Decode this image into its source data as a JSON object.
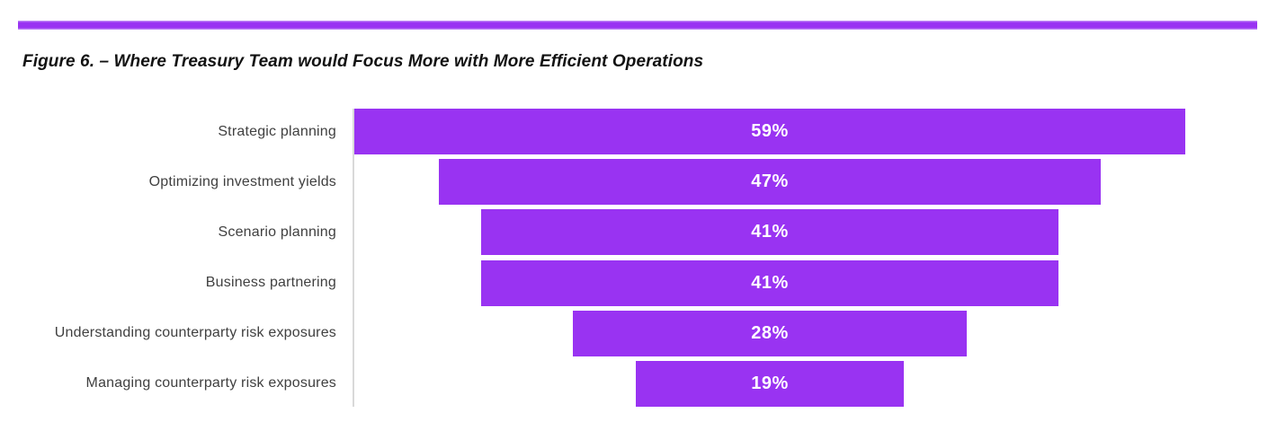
{
  "colors": {
    "accent": "#9933f2",
    "accent_light": "#c79bf7",
    "axis_line": "#d9d9d9",
    "category_label": "#404040",
    "data_label": "#ffffff",
    "title": "#121212"
  },
  "title": {
    "prefix": "Figure 6.",
    "rest": " – Where Treasury Team would Focus More with More Efficient Operations"
  },
  "chart_data": {
    "type": "bar",
    "variant": "horizontal-centered-funnel",
    "title": "Figure 6. – Where Treasury Team would Focus More with More Efficient Operations",
    "categories": [
      "Strategic planning",
      "Optimizing investment yields",
      "Scenario planning",
      "Business partnering",
      "Understanding counterparty risk exposures",
      "Managing counterparty risk exposures"
    ],
    "values": [
      59,
      47,
      41,
      41,
      28,
      19
    ],
    "data_labels": [
      "59%",
      "47%",
      "41%",
      "41%",
      "28%",
      "19%"
    ],
    "xlabel": "",
    "ylabel": "",
    "xlim": [
      0,
      59
    ],
    "grid": "off",
    "legend": "none",
    "bar_color": "#9933f2",
    "data_label_position": "center-inside"
  }
}
